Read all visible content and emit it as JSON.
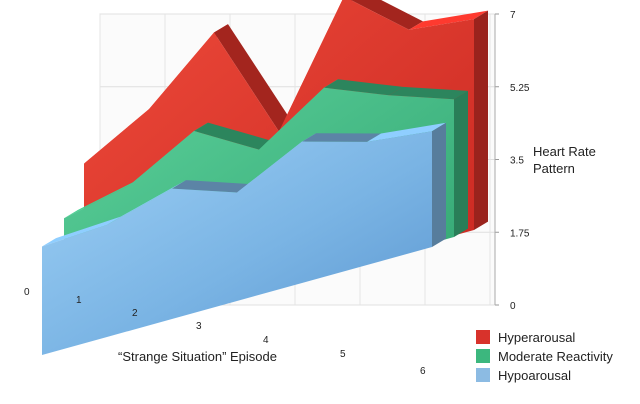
{
  "chart_data": {
    "type": "area",
    "title": "",
    "xlabel": "“Strange Situation” Episode",
    "ylabel": "Heart Rate Pattern",
    "x": [
      0,
      1,
      2,
      3,
      4,
      5,
      6
    ],
    "x_ticks": [
      "0",
      "1",
      "2",
      "3",
      "4",
      "5",
      "6"
    ],
    "y_ticks": [
      "0",
      "1.75",
      "3.5",
      "5.25",
      "7"
    ],
    "ylim": [
      0,
      7
    ],
    "grid": true,
    "legend_position": "bottom-right",
    "series": [
      {
        "name": "Hyperarousal",
        "values": [
          4.0,
          5.0,
          6.6,
          3.4,
          6.6,
          5.2,
          5.0
        ],
        "color": "#e3342a"
      },
      {
        "name": "Moderate Reactivity",
        "values": [
          2.7,
          3.1,
          4.1,
          3.1,
          4.3,
          3.6,
          3.0
        ],
        "color": "#3db981"
      },
      {
        "name": "Hypoarousal",
        "values": [
          2.2,
          2.3,
          2.8,
          2.2,
          3.1,
          2.6,
          2.4
        ],
        "color": "#80b8e6"
      }
    ]
  }
}
